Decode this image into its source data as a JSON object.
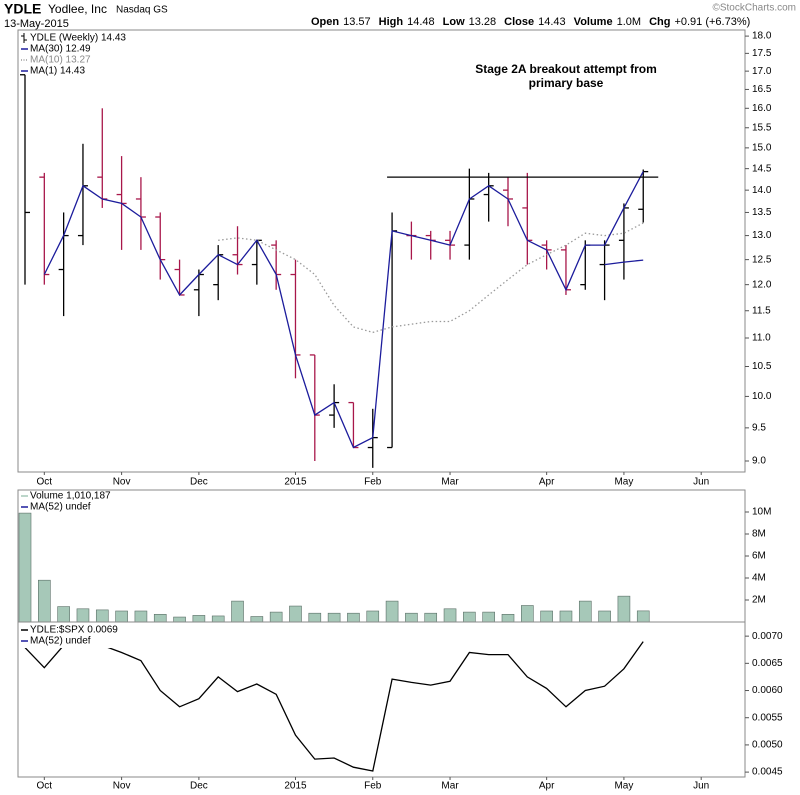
{
  "header": {
    "ticker": "YDLE",
    "company": "Yodlee, Inc",
    "exchange": "Nasdaq GS",
    "date": "13-May-2015",
    "quote": [
      {
        "label": "Open",
        "value": "13.57"
      },
      {
        "label": "High",
        "value": "14.48"
      },
      {
        "label": "Low",
        "value": "13.28"
      },
      {
        "label": "Close",
        "value": "14.43"
      },
      {
        "label": "Volume",
        "value": "1.0M"
      },
      {
        "label": "Chg",
        "value": "+0.91 (+6.73%)"
      }
    ],
    "watermark": "©StockCharts.com"
  },
  "chart_data": [
    {
      "type": "ohlc",
      "categories": [
        null,
        "Oct",
        null,
        null,
        null,
        "Nov",
        null,
        null,
        null,
        "Dec",
        null,
        null,
        null,
        null,
        "2015",
        null,
        null,
        null,
        "Feb",
        null,
        null,
        null,
        "Mar",
        null,
        null,
        null,
        null,
        "Apr",
        null,
        null,
        null,
        "May",
        null,
        null,
        null,
        "Jun"
      ],
      "series": [
        {
          "name": "YDLE (Weekly) 14.43",
          "open": [
            16.9,
            14.3,
            12.3,
            13.0,
            14.3,
            13.9,
            13.8,
            13.4,
            12.3,
            11.9,
            12.0,
            12.6,
            12.4,
            12.8,
            12.2,
            10.7,
            9.7,
            9.9,
            9.2,
            9.2,
            13.0,
            13.0,
            12.9,
            12.8,
            13.9,
            14.0,
            13.6,
            12.8,
            12.7,
            12.0,
            12.4,
            12.9,
            13.57,
            null,
            null,
            null
          ],
          "high": [
            16.9,
            14.4,
            13.5,
            15.1,
            16.0,
            14.8,
            14.3,
            13.5,
            12.5,
            12.3,
            12.8,
            13.2,
            12.9,
            12.9,
            12.5,
            10.7,
            10.2,
            9.9,
            9.8,
            13.5,
            13.3,
            13.1,
            13.1,
            14.5,
            14.4,
            14.3,
            14.4,
            12.9,
            12.8,
            12.9,
            12.9,
            13.7,
            14.48,
            null,
            null,
            null
          ],
          "low": [
            12.0,
            12.0,
            11.4,
            12.8,
            13.6,
            12.7,
            12.7,
            12.1,
            11.8,
            11.4,
            11.7,
            12.2,
            12.0,
            11.9,
            10.3,
            9.0,
            9.5,
            9.2,
            8.9,
            9.2,
            12.5,
            12.5,
            12.5,
            12.5,
            13.3,
            13.2,
            12.4,
            12.3,
            11.8,
            11.9,
            11.7,
            12.1,
            13.28,
            null,
            null,
            null
          ],
          "close": [
            13.5,
            12.2,
            13.0,
            14.1,
            13.8,
            13.7,
            13.4,
            12.5,
            11.8,
            12.2,
            12.6,
            12.4,
            12.9,
            12.2,
            10.7,
            9.7,
            9.9,
            9.2,
            9.35,
            13.1,
            13.0,
            12.9,
            12.8,
            13.8,
            14.1,
            13.8,
            12.9,
            12.7,
            11.9,
            12.8,
            12.8,
            13.6,
            14.43,
            null,
            null,
            null
          ]
        }
      ],
      "up_color": "#000000",
      "down_color": "#a8174a",
      "overlays": [
        {
          "name": "MA(30) 12.49",
          "color": "#1c1c9c",
          "style": "solid",
          "values": [
            null,
            null,
            null,
            null,
            null,
            null,
            null,
            null,
            null,
            null,
            null,
            null,
            null,
            null,
            null,
            null,
            null,
            null,
            null,
            null,
            null,
            null,
            null,
            null,
            null,
            null,
            null,
            null,
            null,
            null,
            12.4,
            12.45,
            12.49,
            null,
            null,
            null
          ]
        },
        {
          "name": "MA(10) 13.27",
          "color": "#9a9a9a",
          "style": "dotted",
          "values": [
            null,
            null,
            null,
            null,
            null,
            null,
            null,
            null,
            null,
            null,
            12.9,
            12.95,
            12.9,
            12.7,
            12.5,
            12.2,
            11.6,
            11.2,
            11.1,
            11.2,
            11.25,
            11.3,
            11.3,
            11.5,
            11.8,
            12.1,
            12.4,
            12.6,
            12.8,
            13.05,
            13.0,
            13.05,
            13.27,
            null,
            null,
            null
          ]
        },
        {
          "name": "MA(1) 14.43",
          "color": "#1c1c9c",
          "style": "solid",
          "values": [
            null,
            12.2,
            13.0,
            14.1,
            13.8,
            13.7,
            13.4,
            12.5,
            11.8,
            12.2,
            12.6,
            12.4,
            12.9,
            12.2,
            10.7,
            9.7,
            9.9,
            9.2,
            9.35,
            13.1,
            13.0,
            12.9,
            12.8,
            13.8,
            14.1,
            13.8,
            12.9,
            12.7,
            11.9,
            12.8,
            12.8,
            13.6,
            14.43,
            null,
            null,
            null
          ]
        }
      ],
      "hline": 14.3,
      "annotation": [
        "Stage 2A breakout attempt from",
        "primary base"
      ],
      "log_scale": true,
      "grid": false,
      "ylim": [
        8.84,
        18.18
      ],
      "yticks": [
        {
          "value": 9,
          "label": "9.0"
        },
        9.5,
        {
          "value": 10,
          "label": "10.0"
        },
        10.5,
        {
          "value": 11,
          "label": "11.0"
        },
        11.5,
        {
          "value": 12,
          "label": "12.0"
        },
        12.5,
        {
          "value": 13,
          "label": "13.0"
        },
        13.5,
        {
          "value": 14,
          "label": "14.0"
        },
        14.5,
        {
          "value": 15,
          "label": "15.0"
        },
        15.5,
        {
          "value": 16,
          "label": "16.0"
        },
        16.5,
        {
          "value": 17,
          "label": "17.0"
        },
        17.5,
        {
          "value": 18,
          "label": "18.0"
        }
      ]
    },
    {
      "type": "bar",
      "series": [
        {
          "name": "Volume 1,010,187",
          "color": "#a6c8b8",
          "values": [
            9900000,
            3800000,
            1400000,
            1200000,
            1100000,
            1000000,
            1000000,
            700000,
            450000,
            600000,
            550000,
            1900000,
            500000,
            900000,
            1450000,
            800000,
            800000,
            800000,
            1000000,
            1900000,
            800000,
            800000,
            1200000,
            900000,
            900000,
            700000,
            1500000,
            1000000,
            1000000,
            1900000,
            1000000,
            2350000,
            1010187
          ]
        }
      ],
      "legend_extra": [
        {
          "name": "MA(52) undef",
          "color": "#1c1c9c"
        }
      ],
      "log_scale": false,
      "grid": false,
      "ylim": [
        0,
        12000000
      ],
      "yticks": [
        {
          "value": 2000000,
          "label": "2M"
        },
        {
          "value": 4000000,
          "label": "4M"
        },
        {
          "value": 6000000,
          "label": "6M"
        },
        {
          "value": 8000000,
          "label": "8M"
        },
        {
          "value": 10000000,
          "label": "10M"
        }
      ]
    },
    {
      "type": "line",
      "categories": [
        null,
        "Oct",
        null,
        null,
        null,
        "Nov",
        null,
        null,
        null,
        "Dec",
        null,
        null,
        null,
        null,
        "2015",
        null,
        null,
        null,
        "Feb",
        null,
        null,
        null,
        "Mar",
        null,
        null,
        null,
        null,
        "Apr",
        null,
        null,
        null,
        "May",
        null,
        null,
        null,
        "Jun"
      ],
      "series": [
        {
          "name": "YDLE:$SPX 0.0069",
          "color": "#000000",
          "values": [
            0.00679,
            0.00642,
            0.00683,
            0.00698,
            0.00683,
            0.0067,
            0.00655,
            0.006,
            0.0057,
            0.00585,
            0.00625,
            0.00598,
            0.00612,
            0.00593,
            0.00518,
            0.00474,
            0.00476,
            0.00459,
            0.00452,
            0.00621,
            0.00615,
            0.0061,
            0.00617,
            0.0067,
            0.00666,
            0.00666,
            0.00625,
            0.00604,
            0.0057,
            0.006,
            0.00608,
            0.0064,
            0.0069,
            null,
            null,
            null
          ]
        }
      ],
      "legend_extra": [
        {
          "name": "MA(52) undef",
          "color": "#1c1c9c"
        }
      ],
      "log_scale": false,
      "grid": false,
      "ylim": [
        0.00441,
        0.00726
      ],
      "yticks": [
        0.0045,
        {
          "value": 0.005,
          "label": "0.0050"
        },
        0.0055,
        {
          "value": 0.006,
          "label": "0.0060"
        },
        0.0065,
        {
          "value": 0.007,
          "label": "0.0070"
        }
      ]
    }
  ]
}
